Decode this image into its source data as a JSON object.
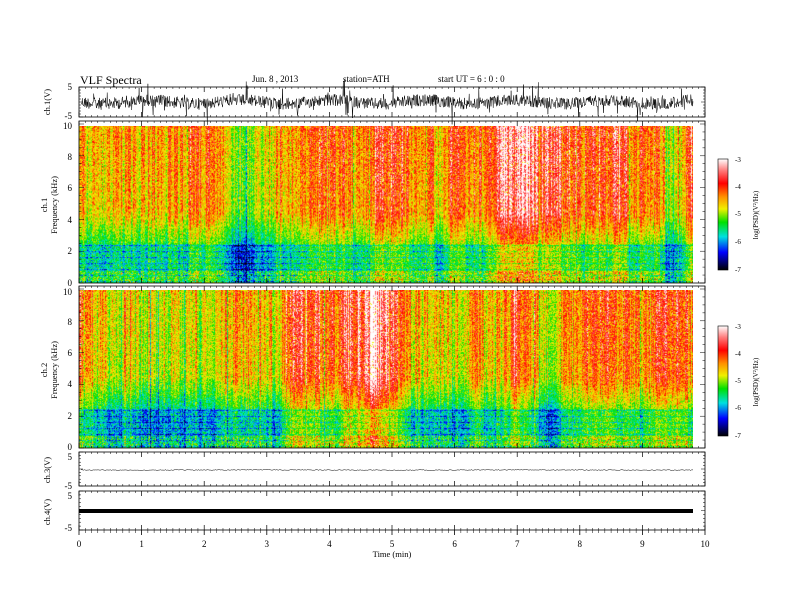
{
  "header": {
    "title": "VLF  Spectra",
    "date": "Jun. 8  , 2013",
    "station": "station=ATH",
    "start": "start  UT  =   6  : 0  : 0"
  },
  "chart_data": [
    {
      "type": "line",
      "id": "ch1",
      "ylabel": "ch.1(V)",
      "ylim": [
        -5,
        5
      ],
      "yticks": [
        "5",
        "-5"
      ],
      "description_signal": "noisy waveform centered near 0 V, amplitude about ±2 V",
      "x_range_min": [
        0,
        9.8
      ]
    },
    {
      "type": "heatmap",
      "id": "ch1-spec",
      "ylabel": "ch.1\nFrequency  (kHz)",
      "ylabel_line1": "ch.1",
      "ylabel_line2": "Frequency  (kHz)",
      "ylim": [
        0,
        10
      ],
      "yticks": [
        "0",
        "2",
        "4",
        "6",
        "8",
        "10"
      ],
      "x_range_min": [
        0,
        9.8
      ],
      "colorbar": {
        "label": "log(PSD)(V²/Hz)",
        "range": [
          -7,
          -3
        ],
        "ticks": [
          "-3",
          "-4",
          "-5",
          "-6",
          "-7"
        ]
      }
    },
    {
      "type": "heatmap",
      "id": "ch2-spec",
      "ylabel_line1": "ch.2",
      "ylabel_line2": "Frequency  (kHz)",
      "ylim": [
        0,
        10
      ],
      "yticks": [
        "0",
        "2",
        "4",
        "6",
        "8",
        "10"
      ],
      "x_range_min": [
        0,
        9.8
      ],
      "colorbar": {
        "label": "log(PSD)(V²/Hz)",
        "range": [
          -7,
          -3
        ],
        "ticks": [
          "-3",
          "-4",
          "-5",
          "-6",
          "-7"
        ]
      }
    },
    {
      "type": "line",
      "id": "ch3",
      "ylabel": "ch.3(V)",
      "ylim": [
        -5,
        5
      ],
      "yticks": [
        "5",
        "-5"
      ],
      "x_range_min": [
        0,
        9.8
      ]
    },
    {
      "type": "line",
      "id": "ch4",
      "ylabel": "ch.4(V)",
      "ylim": [
        -5,
        5
      ],
      "yticks": [
        "5",
        "-5"
      ],
      "x_range_min": [
        0,
        9.8
      ]
    }
  ],
  "xaxis": {
    "label": "Time  (min)",
    "ticks": [
      "0",
      "1",
      "2",
      "3",
      "4",
      "5",
      "6",
      "7",
      "8",
      "9",
      "10"
    ],
    "xlim": [
      0,
      10
    ]
  },
  "colors": {
    "red": "#ff0000",
    "yellow": "#f0f000",
    "green": "#00e000",
    "cyan": "#00e0e0",
    "blue": "#0000ff"
  }
}
